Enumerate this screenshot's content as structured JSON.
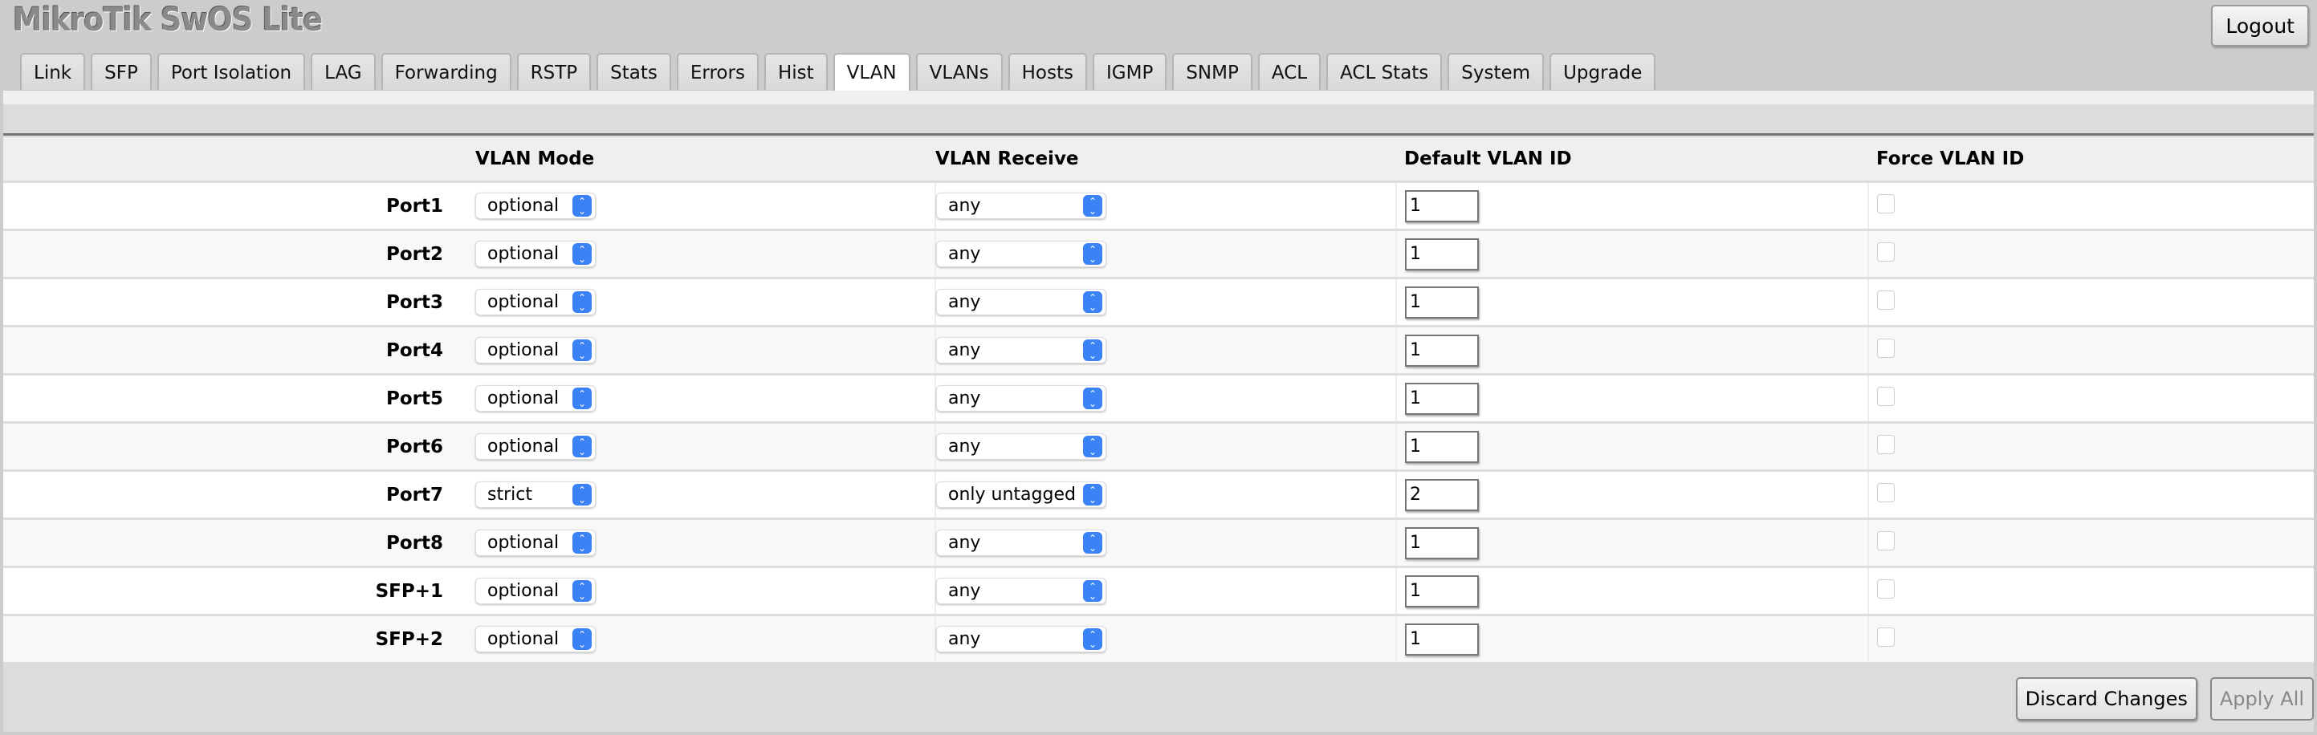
{
  "app": {
    "title": "MikroTik SwOS Lite",
    "logout_label": "Logout"
  },
  "tabs": [
    {
      "label": "Link"
    },
    {
      "label": "SFP"
    },
    {
      "label": "Port Isolation"
    },
    {
      "label": "LAG"
    },
    {
      "label": "Forwarding"
    },
    {
      "label": "RSTP"
    },
    {
      "label": "Stats"
    },
    {
      "label": "Errors"
    },
    {
      "label": "Hist"
    },
    {
      "label": "VLAN",
      "active": true
    },
    {
      "label": "VLANs"
    },
    {
      "label": "Hosts"
    },
    {
      "label": "IGMP"
    },
    {
      "label": "SNMP"
    },
    {
      "label": "ACL"
    },
    {
      "label": "ACL Stats"
    },
    {
      "label": "System"
    },
    {
      "label": "Upgrade"
    }
  ],
  "table": {
    "headers": {
      "mode": "VLAN Mode",
      "receive": "VLAN Receive",
      "default_id": "Default VLAN ID",
      "force": "Force VLAN ID"
    },
    "rows": [
      {
        "port": "Port1",
        "mode": "optional",
        "receive": "any",
        "default_id": "1",
        "force": false
      },
      {
        "port": "Port2",
        "mode": "optional",
        "receive": "any",
        "default_id": "1",
        "force": false
      },
      {
        "port": "Port3",
        "mode": "optional",
        "receive": "any",
        "default_id": "1",
        "force": false
      },
      {
        "port": "Port4",
        "mode": "optional",
        "receive": "any",
        "default_id": "1",
        "force": false
      },
      {
        "port": "Port5",
        "mode": "optional",
        "receive": "any",
        "default_id": "1",
        "force": false
      },
      {
        "port": "Port6",
        "mode": "optional",
        "receive": "any",
        "default_id": "1",
        "force": false
      },
      {
        "port": "Port7",
        "mode": "strict",
        "receive": "only untagged",
        "default_id": "2",
        "force": false
      },
      {
        "port": "Port8",
        "mode": "optional",
        "receive": "any",
        "default_id": "1",
        "force": false
      },
      {
        "port": "SFP+1",
        "mode": "optional",
        "receive": "any",
        "default_id": "1",
        "force": false
      },
      {
        "port": "SFP+2",
        "mode": "optional",
        "receive": "any",
        "default_id": "1",
        "force": false
      }
    ]
  },
  "footer": {
    "discard_label": "Discard Changes",
    "apply_label": "Apply All",
    "apply_disabled": true
  },
  "colors": {
    "select_accent": "#3b82f6",
    "background": "#cccccc"
  },
  "icons": {
    "select_arrow": "chevron-up-down-icon"
  }
}
